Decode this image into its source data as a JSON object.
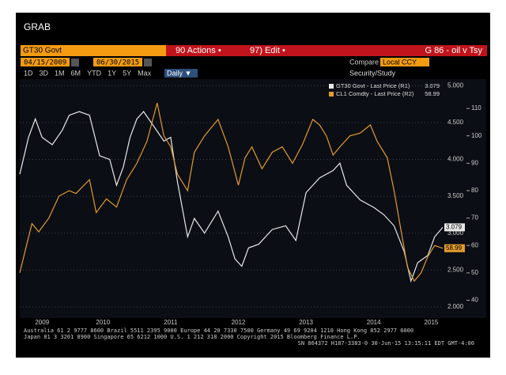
{
  "window": {
    "title": "GRAB"
  },
  "toolbar": {
    "ticker": "GT30 Govt",
    "actions": "90 Actions •",
    "edit": "97) Edit •",
    "page_title": "G 86 - oil v Tsy",
    "start_date": "04/15/2009",
    "end_date": "06/30/2015",
    "compare": "Compare",
    "currency": "Local CCY",
    "ranges": [
      "1D",
      "3D",
      "1M",
      "6M",
      "YTD",
      "1Y",
      "5Y",
      "Max"
    ],
    "frequency": "Daily ▼",
    "study": "Security/Study"
  },
  "footer": [
    "Australia 61 2 9777 8600 Brazil 5511 2395 9000 Europe 44 20 7330 7500 Germany 49 69 9204 1210 Hong Kong 852 2977 6000",
    "Japan 81 3 3201 8900        Singapore 65 6212 1000        U.S. 1 212 318 2000        Copyright 2015 Bloomberg Finance L.P.",
    "SN 864372 H187-3383-0 30-Jun-15 13:15:11 EDT  GMT-4:00"
  ],
  "chart_data": {
    "type": "line",
    "xlim": [
      2009.27,
      2015.52
    ],
    "xticks": [
      {
        "value": 2009.6,
        "label": "2009"
      },
      {
        "value": 2010.5,
        "label": "2010"
      },
      {
        "value": 2011.5,
        "label": "2011"
      },
      {
        "value": 2012.5,
        "label": "2012"
      },
      {
        "value": 2013.5,
        "label": "2013"
      },
      {
        "value": 2014.5,
        "label": "2014"
      },
      {
        "value": 2015.35,
        "label": "2015"
      }
    ],
    "ylim": [
      1.87,
      5.09
    ],
    "yticks": [
      {
        "value": 2,
        "label": "2.000"
      },
      {
        "value": 2.5,
        "label": "2.500"
      },
      {
        "value": 3,
        "label": "3.000"
      },
      {
        "value": 3.5,
        "label": "3.500"
      },
      {
        "value": 4,
        "label": "4.000"
      },
      {
        "value": 4.5,
        "label": "4.500"
      },
      {
        "value": 5,
        "label": "5.000"
      }
    ],
    "y2lim": [
      34.1,
      120.7
    ],
    "y2ticks": [
      40,
      50,
      60,
      70,
      80,
      90,
      100,
      110
    ],
    "grid": true,
    "series": [
      {
        "name": "GT30 Govt - Last Price (R1)",
        "color": "#e8e8e8",
        "axis": "y",
        "x": [
          2009.27,
          2009.4,
          2009.5,
          2009.6,
          2009.75,
          2009.9,
          2010.0,
          2010.15,
          2010.3,
          2010.45,
          2010.6,
          2010.7,
          2010.8,
          2010.9,
          2011.0,
          2011.1,
          2011.25,
          2011.4,
          2011.5,
          2011.6,
          2011.75,
          2011.85,
          2012.0,
          2012.2,
          2012.35,
          2012.45,
          2012.55,
          2012.65,
          2012.8,
          2013.0,
          2013.2,
          2013.35,
          2013.5,
          2013.7,
          2013.9,
          2014.0,
          2014.1,
          2014.3,
          2014.5,
          2014.65,
          2014.8,
          2014.95,
          2015.05,
          2015.15,
          2015.3,
          2015.4,
          2015.52
        ],
        "values": [
          3.8,
          4.3,
          4.55,
          4.3,
          4.2,
          4.4,
          4.6,
          4.65,
          4.6,
          4.05,
          4.0,
          3.65,
          3.9,
          4.3,
          4.55,
          4.65,
          4.45,
          4.25,
          4.3,
          3.7,
          2.95,
          3.2,
          3.0,
          3.3,
          2.95,
          2.65,
          2.55,
          2.8,
          2.85,
          3.05,
          3.1,
          2.9,
          3.55,
          3.75,
          3.85,
          3.95,
          3.65,
          3.45,
          3.35,
          3.25,
          3.1,
          2.75,
          2.35,
          2.6,
          2.7,
          2.95,
          3.079
        ]
      },
      {
        "name": "CL1 Comdty - Last Price (R2)",
        "color": "#e39b2f",
        "axis": "y2",
        "x": [
          2009.27,
          2009.35,
          2009.45,
          2009.55,
          2009.7,
          2009.85,
          2010.0,
          2010.1,
          2010.3,
          2010.4,
          2010.55,
          2010.7,
          2010.85,
          2011.0,
          2011.15,
          2011.3,
          2011.4,
          2011.5,
          2011.6,
          2011.75,
          2011.85,
          2012.0,
          2012.2,
          2012.35,
          2012.5,
          2012.6,
          2012.7,
          2012.85,
          2013.0,
          2013.15,
          2013.3,
          2013.45,
          2013.6,
          2013.7,
          2013.8,
          2013.9,
          2014.0,
          2014.15,
          2014.3,
          2014.45,
          2014.55,
          2014.7,
          2014.8,
          2014.9,
          2015.0,
          2015.1,
          2015.2,
          2015.3,
          2015.4,
          2015.52
        ],
        "values": [
          50,
          58,
          68,
          65,
          70,
          78,
          80,
          79,
          84,
          72,
          77,
          74,
          84,
          90,
          98,
          112,
          100,
          96,
          86,
          80,
          94,
          100,
          106,
          96,
          82,
          92,
          96,
          88,
          94,
          96,
          90,
          97,
          106,
          104,
          100,
          93,
          96,
          100,
          101,
          104,
          98,
          92,
          80,
          66,
          52,
          47,
          50,
          56,
          60,
          58.99
        ]
      }
    ]
  }
}
